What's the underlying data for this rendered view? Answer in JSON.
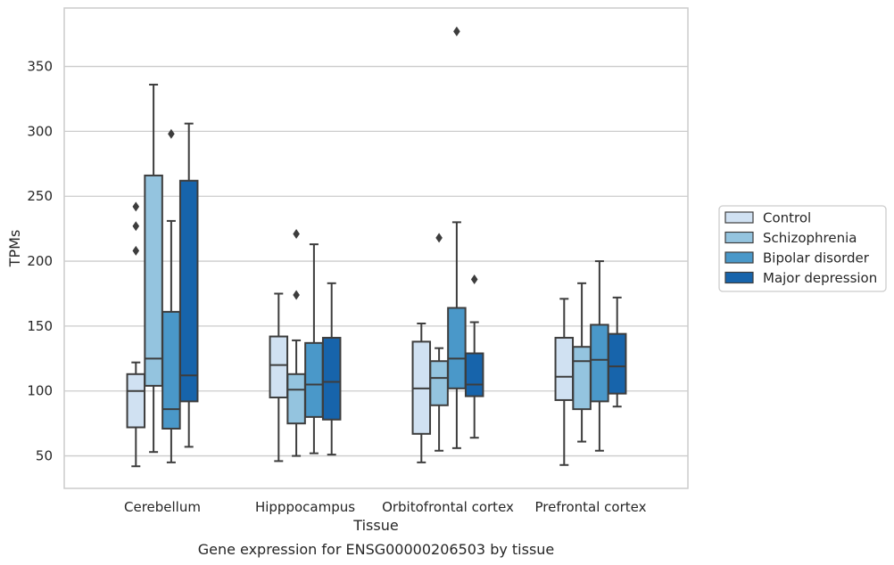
{
  "chart_data": {
    "type": "box",
    "title": "Gene expression for ENSG00000206503 by tissue",
    "xlabel": "Tissue",
    "ylabel": "TPMs",
    "ylim": [
      25,
      395
    ],
    "yticks": [
      50,
      100,
      150,
      200,
      250,
      300,
      350
    ],
    "grid": "horizontal",
    "legend_position": "right",
    "categories": [
      "Cerebellum",
      "Hipppocampus",
      "Orbitofrontal cortex",
      "Prefrontal cortex"
    ],
    "series": [
      {
        "name": "Control",
        "color": "#d0e1f2",
        "boxes": [
          {
            "whislo": 42,
            "q1": 72,
            "med": 100,
            "q3": 113,
            "whishi": 122,
            "fliers": [
              208,
              227,
              242
            ]
          },
          {
            "whislo": 46,
            "q1": 95,
            "med": 120,
            "q3": 142,
            "whishi": 175,
            "fliers": []
          },
          {
            "whislo": 45,
            "q1": 67,
            "med": 102,
            "q3": 138,
            "whishi": 152,
            "fliers": []
          },
          {
            "whislo": 43,
            "q1": 93,
            "med": 111,
            "q3": 141,
            "whishi": 171,
            "fliers": []
          }
        ]
      },
      {
        "name": "Schizophrenia",
        "color": "#94c4df",
        "boxes": [
          {
            "whislo": 53,
            "q1": 104,
            "med": 125,
            "q3": 266,
            "whishi": 336,
            "fliers": []
          },
          {
            "whislo": 50,
            "q1": 75,
            "med": 101,
            "q3": 113,
            "whishi": 139,
            "fliers": [
              174,
              221
            ]
          },
          {
            "whislo": 54,
            "q1": 89,
            "med": 110,
            "q3": 123,
            "whishi": 133,
            "fliers": [
              218
            ]
          },
          {
            "whislo": 61,
            "q1": 86,
            "med": 123,
            "q3": 134,
            "whishi": 183,
            "fliers": []
          }
        ]
      },
      {
        "name": "Bipolar disorder",
        "color": "#4a98c9",
        "boxes": [
          {
            "whislo": 45,
            "q1": 71,
            "med": 86,
            "q3": 161,
            "whishi": 231,
            "fliers": [
              298
            ]
          },
          {
            "whislo": 52,
            "q1": 80,
            "med": 105,
            "q3": 137,
            "whishi": 213,
            "fliers": []
          },
          {
            "whislo": 56,
            "q1": 102,
            "med": 125,
            "q3": 164,
            "whishi": 230,
            "fliers": [
              377
            ]
          },
          {
            "whislo": 54,
            "q1": 92,
            "med": 124,
            "q3": 151,
            "whishi": 200,
            "fliers": []
          }
        ]
      },
      {
        "name": "Major depression",
        "color": "#1764ab",
        "boxes": [
          {
            "whislo": 57,
            "q1": 92,
            "med": 112,
            "q3": 262,
            "whishi": 306,
            "fliers": []
          },
          {
            "whislo": 51,
            "q1": 78,
            "med": 107,
            "q3": 141,
            "whishi": 183,
            "fliers": []
          },
          {
            "whislo": 64,
            "q1": 96,
            "med": 105,
            "q3": 129,
            "whishi": 153,
            "fliers": [
              186
            ]
          },
          {
            "whislo": 88,
            "q1": 98,
            "med": 119,
            "q3": 144,
            "whishi": 172,
            "fliers": []
          }
        ]
      }
    ]
  },
  "style": {
    "edge_color": "#3d3d3d",
    "grid_color": "#cccccc",
    "frame_color": "#cccccc",
    "background": "#ffffff"
  }
}
